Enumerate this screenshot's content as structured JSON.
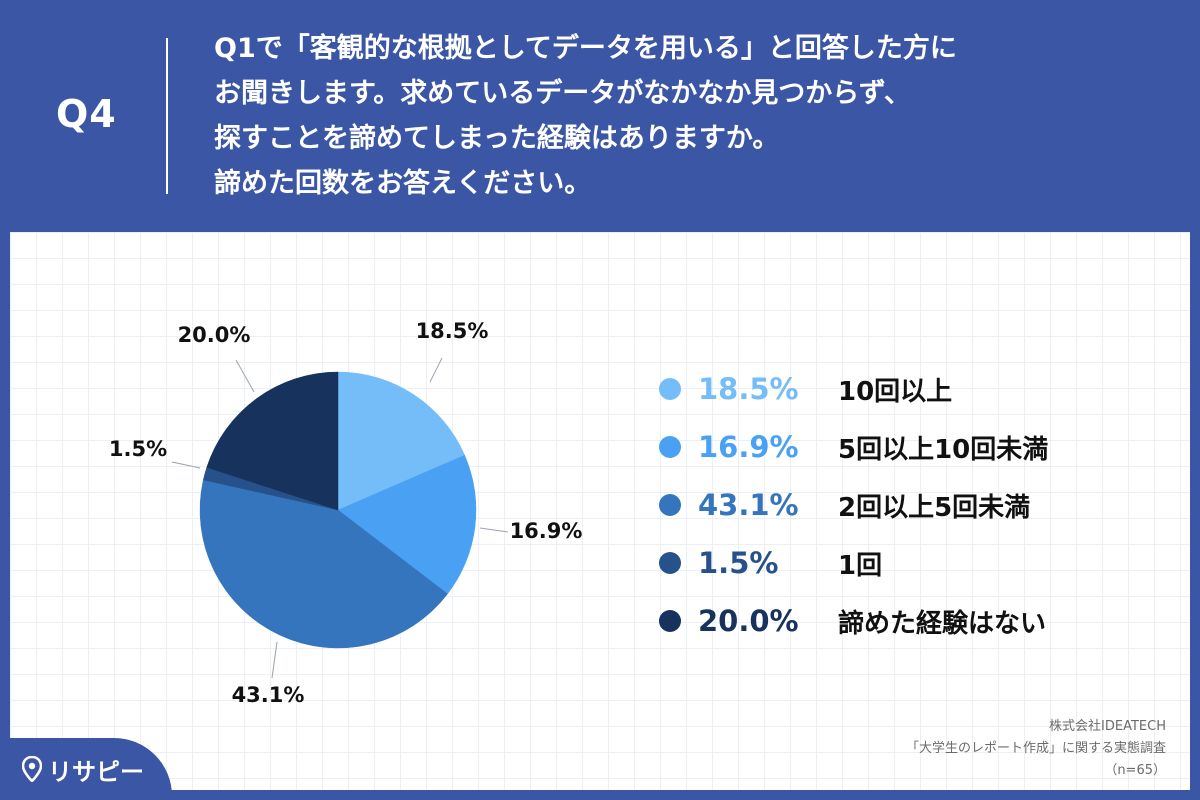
{
  "header": {
    "q_label": "Q4",
    "question_lines": [
      "Q1で「客観的な根拠としてデータを用いる」と回答した方に",
      "お聞きします。求めているデータがなかなか見つからず、",
      "探すことを諦めてしまった経験はありますか。",
      "諦めた回数をお答えください。"
    ]
  },
  "colors": {
    "header_bg": "#3a56a5",
    "slice_1": "#74bdf8",
    "slice_2": "#4aa1f3",
    "slice_3": "#3575bd",
    "slice_4": "#27518b",
    "slice_5": "#16325d"
  },
  "chart_data": {
    "type": "pie",
    "categories": [
      "10回以上",
      "5回以上10回未満",
      "2回以上5回未満",
      "1回",
      "諦めた経験はない"
    ],
    "values": [
      18.5,
      16.9,
      43.1,
      1.5,
      20.0
    ],
    "value_labels": [
      "18.5%",
      "16.9%",
      "43.1%",
      "1.5%",
      "20.0%"
    ],
    "start": "12 o'clock",
    "direction": "clockwise",
    "legend_placement": "right"
  },
  "legend": [
    {
      "value": "18.5%",
      "label": "10回以上",
      "color": "#74bdf8"
    },
    {
      "value": "16.9%",
      "label": "5回以上10回未満",
      "color": "#4aa1f3"
    },
    {
      "value": "43.1%",
      "label": "2回以上5回未満",
      "color": "#3575bd"
    },
    {
      "value": "1.5%",
      "label": "1回",
      "color": "#27518b"
    },
    {
      "value": "20.0%",
      "label": "諦めた経験はない",
      "color": "#16325d"
    }
  ],
  "credit": {
    "company": "株式会社IDEATECH",
    "survey": "「大学生のレポート作成」に関する実態調査",
    "sample": "（n=65）"
  },
  "logo": {
    "text": "リサピー",
    "icon": "map-pin-icon"
  }
}
